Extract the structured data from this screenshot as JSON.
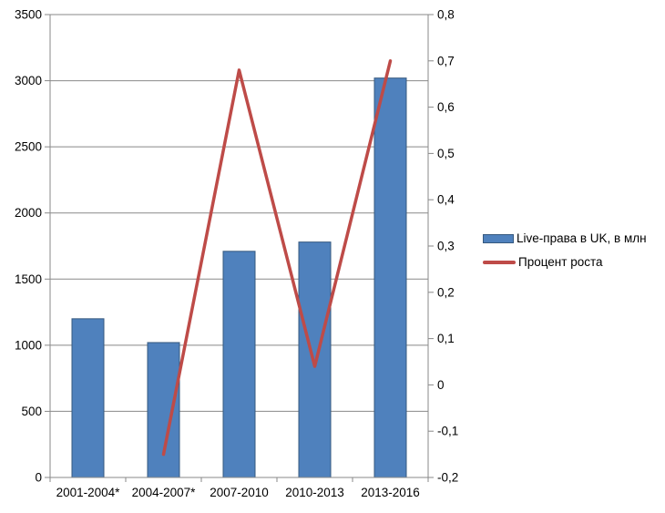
{
  "colors": {
    "background": "#ffffff",
    "bar_fill": "#4f81bd",
    "bar_border": "#36597f",
    "line": "#be4b48",
    "grid": "#898989",
    "axis": "#898989",
    "text": "#000000"
  },
  "chart_data": {
    "type": "bar",
    "subtype": "combo-bar-line-dual-axis",
    "title": "",
    "xlabel": "",
    "ylabel": "",
    "grid": true,
    "legend_position": "right",
    "categories": [
      "2001-2004*",
      "2004-2007*",
      "2007-2010",
      "2010-2013",
      "2013-2016"
    ],
    "series": [
      {
        "name": "Live-права в UK, в млн",
        "type": "bar",
        "axis": "left",
        "color": "#4f81bd",
        "values": [
          1200,
          1020,
          1710,
          1780,
          3020
        ]
      },
      {
        "name": "Процент роста",
        "type": "line",
        "axis": "right",
        "color": "#be4b48",
        "values": [
          null,
          -0.15,
          0.68,
          0.04,
          0.7
        ]
      }
    ],
    "left_axis": {
      "min": 0,
      "max": 3500,
      "step": 500,
      "tick_labels": [
        "3500",
        "3000",
        "2500",
        "2000",
        "1500",
        "1000",
        "500",
        "0"
      ]
    },
    "right_axis": {
      "min": -0.2,
      "max": 0.8,
      "step": 0.1,
      "tick_labels": [
        "0,8",
        "0,7",
        "0,6",
        "0,5",
        "0,4",
        "0,3",
        "0,2",
        "0,1",
        "0",
        "-0,1",
        "-0,2"
      ]
    },
    "legend": {
      "entries": [
        {
          "label": "Live-права в UK, в млн",
          "swatch": "bar"
        },
        {
          "label": "Процент роста",
          "swatch": "line"
        }
      ]
    }
  }
}
